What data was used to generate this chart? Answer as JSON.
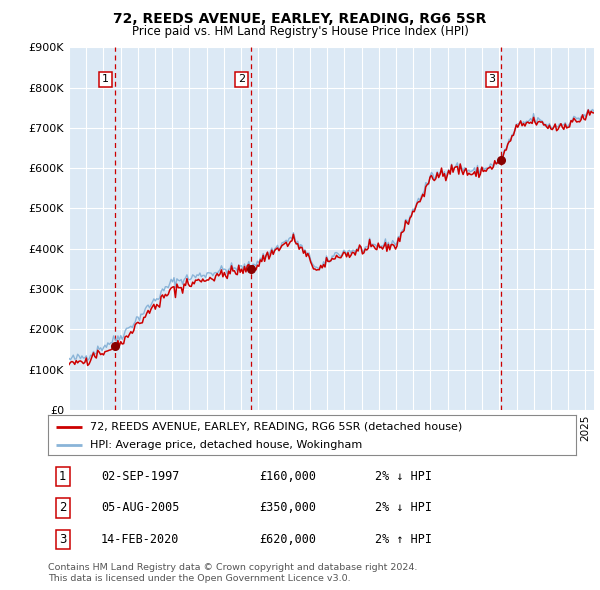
{
  "title": "72, REEDS AVENUE, EARLEY, READING, RG6 5SR",
  "subtitle": "Price paid vs. HM Land Registry's House Price Index (HPI)",
  "ylim": [
    0,
    900000
  ],
  "yticks": [
    0,
    100000,
    200000,
    300000,
    400000,
    500000,
    600000,
    700000,
    800000,
    900000
  ],
  "ytick_labels": [
    "£0",
    "£100K",
    "£200K",
    "£300K",
    "£400K",
    "£500K",
    "£600K",
    "£700K",
    "£800K",
    "£900K"
  ],
  "bg_color": "#dce9f5",
  "grid_color": "#ffffff",
  "hpi_line_color": "#8ab4d8",
  "price_line_color": "#cc0000",
  "marker_color": "#880000",
  "vline_color": "#cc0000",
  "purchases": [
    {
      "date_num": 1997.67,
      "price": 160000,
      "label": "1"
    },
    {
      "date_num": 2005.59,
      "price": 350000,
      "label": "2"
    },
    {
      "date_num": 2020.12,
      "price": 620000,
      "label": "3"
    }
  ],
  "table_rows": [
    {
      "num": "1",
      "date": "02-SEP-1997",
      "price": "£160,000",
      "hpi": "2% ↓ HPI"
    },
    {
      "num": "2",
      "date": "05-AUG-2005",
      "price": "£350,000",
      "hpi": "2% ↓ HPI"
    },
    {
      "num": "3",
      "date": "14-FEB-2020",
      "price": "£620,000",
      "hpi": "2% ↑ HPI"
    }
  ],
  "legend_entries": [
    "72, REEDS AVENUE, EARLEY, READING, RG6 5SR (detached house)",
    "HPI: Average price, detached house, Wokingham"
  ],
  "footnote": "Contains HM Land Registry data © Crown copyright and database right 2024.\nThis data is licensed under the Open Government Licence v3.0.",
  "xmin": 1995.0,
  "xmax": 2025.5
}
